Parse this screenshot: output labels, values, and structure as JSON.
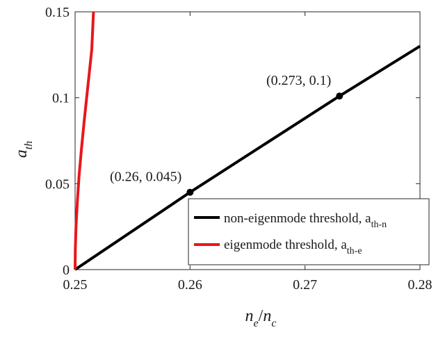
{
  "chart_data": {
    "type": "line",
    "xlabel": {
      "main": "n",
      "sub": "e",
      "sep": "/",
      "main2": "n",
      "sub2": "c"
    },
    "ylabel": {
      "main": "a",
      "sub": "th"
    },
    "xlim": [
      0.25,
      0.28
    ],
    "ylim": [
      0,
      0.15
    ],
    "xticks": [
      0.25,
      0.26,
      0.27,
      0.28
    ],
    "xtick_labels": [
      "0.25",
      "0.26",
      "0.27",
      "0.28"
    ],
    "yticks": [
      0,
      0.05,
      0.1,
      0.15
    ],
    "ytick_labels": [
      "0",
      "0.05",
      "0.1",
      "0.15"
    ],
    "grid": false,
    "legend_position": "bottom-right",
    "series": [
      {
        "name": "non-eigenmode threshold, a",
        "name_sub": "th-n",
        "color": "#000000",
        "x": [
          0.25,
          0.26,
          0.273,
          0.28
        ],
        "y": [
          0.0,
          0.045,
          0.101,
          0.13
        ]
      },
      {
        "name": "eigenmode threshold, a",
        "name_sub": "th-e",
        "color": "#e8161b",
        "x": [
          0.25,
          0.25002,
          0.25008,
          0.2502,
          0.25035,
          0.25055,
          0.2508,
          0.2511,
          0.25145,
          0.2516
        ],
        "y": [
          0.0,
          0.012,
          0.025,
          0.04,
          0.055,
          0.07,
          0.087,
          0.106,
          0.128,
          0.15
        ]
      }
    ],
    "markers": [
      {
        "x": 0.26,
        "y": 0.045,
        "label": "(0.26, 0.045)"
      },
      {
        "x": 0.273,
        "y": 0.101,
        "label": "(0.273, 0.1)"
      }
    ]
  }
}
